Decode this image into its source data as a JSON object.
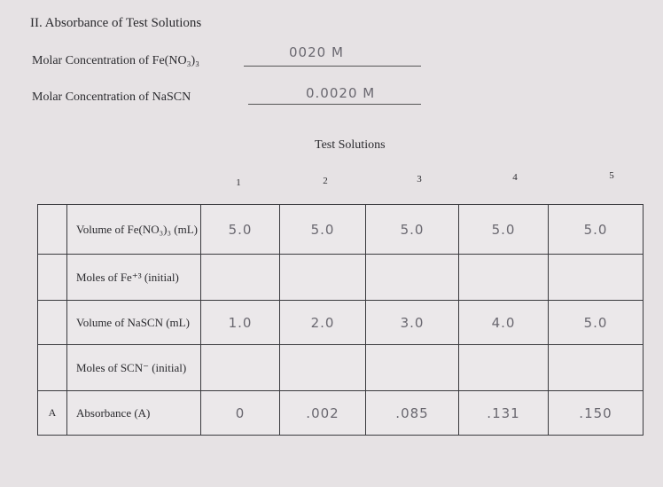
{
  "section": {
    "title": "II. Absorbance of Test Solutions",
    "fields": [
      {
        "label": "Molar Concentration of Fe(NO₃)₃",
        "value": "0020 M"
      },
      {
        "label": "Molar Concentration of NaSCN",
        "value": "0.0020 M"
      }
    ]
  },
  "table": {
    "caption": "Test Solutions",
    "columns": [
      "1",
      "2",
      "3",
      "4",
      "5"
    ],
    "rows": [
      {
        "label": "Volume of Fe(NO₃)₃ (mL)",
        "values": [
          "5.0",
          "5.0",
          "5.0",
          "5.0",
          "5.0"
        ]
      },
      {
        "label": "Moles of Fe⁺³ (initial)"
      },
      {
        "label": "Volume of NaSCN (mL)",
        "values": [
          "1.0",
          "2.0",
          "3.0",
          "4.0",
          "5.0"
        ]
      },
      {
        "label": "Moles of SCN⁻ (initial)"
      },
      {
        "marker": "A",
        "label": "Absorbance (A)",
        "values": [
          "0",
          ".002",
          ".085",
          ".131",
          ".150"
        ]
      }
    ]
  }
}
